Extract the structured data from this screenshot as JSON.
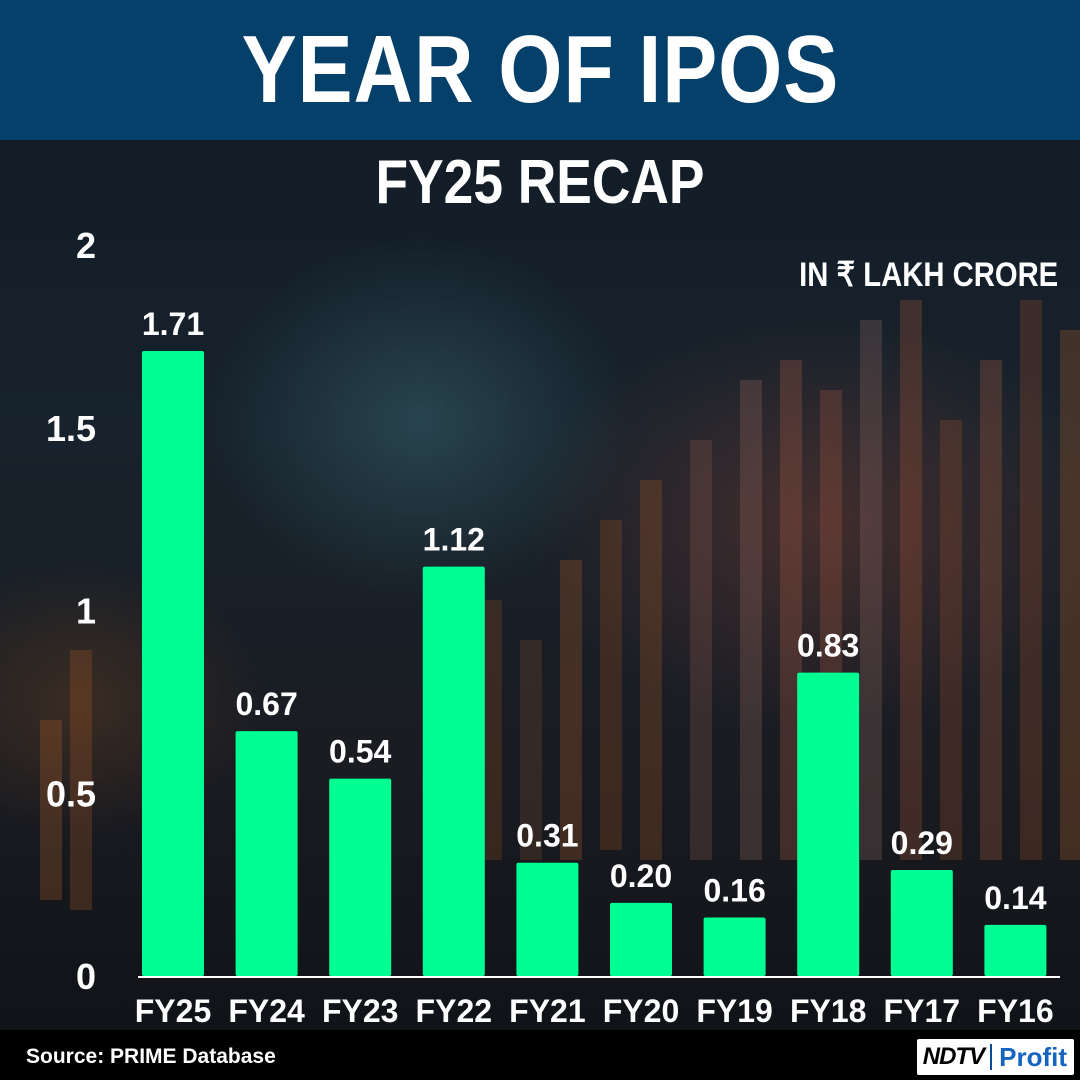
{
  "header": {
    "title": "YEAR OF IPOS"
  },
  "subtitle": "FY25 RECAP",
  "unit_label": "IN ₹ LAKH CRORE",
  "source": "Source: PRIME Database",
  "brand": {
    "name": "NDTV",
    "product": "Profit"
  },
  "colors": {
    "bar": "#00ff92",
    "header_bg": "#05406a",
    "text": "#ffffff",
    "axis": "#ffffff"
  },
  "chart_data": {
    "type": "bar",
    "title": "FY25 RECAP",
    "ylabel": "IN ₹ LAKH CRORE",
    "xlabel": "",
    "ylim": [
      0,
      2
    ],
    "yticks": [
      0,
      0.5,
      1,
      1.5,
      2
    ],
    "ytick_labels": [
      "0",
      "0.5",
      "1",
      "1.5",
      "2"
    ],
    "grid": false,
    "categories": [
      "FY25",
      "FY24",
      "FY23",
      "FY22",
      "FY21",
      "FY20",
      "FY19",
      "FY18",
      "FY17",
      "FY16"
    ],
    "values": [
      1.71,
      0.67,
      0.54,
      1.12,
      0.31,
      0.2,
      0.16,
      0.83,
      0.29,
      0.14
    ],
    "data_labels": [
      "1.71",
      "0.67",
      "0.54",
      "1.12",
      "0.31",
      "0.20",
      "0.16",
      "0.83",
      "0.29",
      "0.14"
    ]
  }
}
